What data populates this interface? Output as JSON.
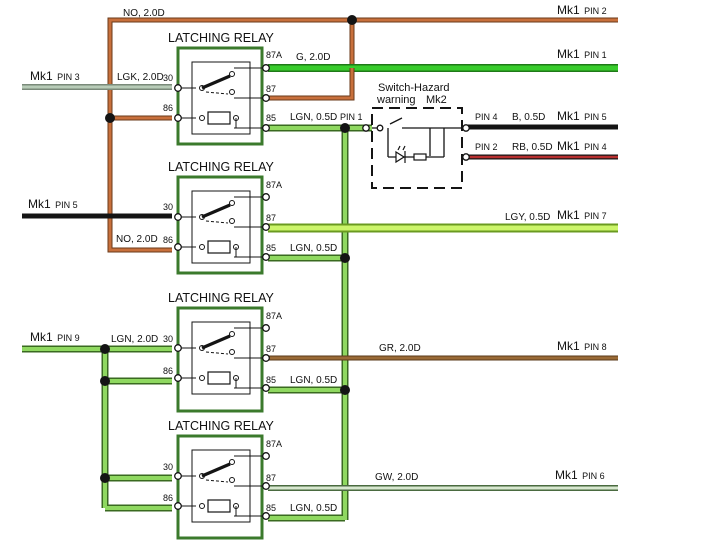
{
  "colors": {
    "orange": "#c8703c",
    "green": "#2fbe25",
    "gray_green": "#9cb4a0",
    "black": "#141414",
    "red": "#b83030",
    "light_green": "#b8f050",
    "green_light": "#8fd860",
    "brown": "#8a5a2e",
    "gray_white": "#c8d8c0",
    "relay_border": "#3b7a2c",
    "wire_edge": "#3c4030"
  },
  "relays": [
    {
      "title": "LATCHING RELAY",
      "pin_30": "30",
      "pin_86": "86",
      "pin_87a": "87A",
      "pin_87": "87",
      "pin_85": "85"
    },
    {
      "title": "LATCHING RELAY",
      "pin_30": "30",
      "pin_86": "86",
      "pin_87a": "87A",
      "pin_87": "87",
      "pin_85": "85"
    },
    {
      "title": "LATCHING RELAY",
      "pin_30": "30",
      "pin_86": "86",
      "pin_87a": "87A",
      "pin_87": "87",
      "pin_85": "85"
    },
    {
      "title": "LATCHING RELAY",
      "pin_30": "30",
      "pin_86": "86",
      "pin_87a": "87A",
      "pin_87": "87",
      "pin_85": "85"
    }
  ],
  "wire_labels": {
    "no_top": "NO, 2.0D",
    "lgk": "LGK, 2.0D",
    "g": "G, 2.0D",
    "lgn_r1": "LGN, 0.5D",
    "no_r2": "NO, 2.0D",
    "lgy": "LGY, 0.5D",
    "lgn_r2": "LGN, 0.5D",
    "lgn_in": "LGN, 2.0D",
    "gr": "GR, 2.0D",
    "lgn_r3": "LGN, 0.5D",
    "gw": "GW, 2.0D",
    "lgn_r4": "LGN, 0.5D",
    "b": "B, 0.5D",
    "rb": "RB, 0.5D"
  },
  "connectors": {
    "pin2_top": {
      "mk": "Mk1",
      "pin": "PIN 2"
    },
    "pin1": {
      "mk": "Mk1",
      "pin": "PIN 1"
    },
    "pin3": {
      "mk": "Mk1",
      "pin": "PIN 3"
    },
    "pin5_right": {
      "mk": "Mk1",
      "pin": "PIN 5"
    },
    "pin4": {
      "mk": "Mk1",
      "pin": "PIN 4"
    },
    "pin5_left": {
      "mk": "Mk1",
      "pin": "PIN 5"
    },
    "pin7": {
      "mk": "Mk1",
      "pin": "PIN 7"
    },
    "pin9": {
      "mk": "Mk1",
      "pin": "PIN 9"
    },
    "pin8": {
      "mk": "Mk1",
      "pin": "PIN 8"
    },
    "pin6": {
      "mk": "Mk1",
      "pin": "PIN 6"
    }
  },
  "switch": {
    "title_line1": "Switch-Hazard",
    "title_line2": "warning",
    "mk": "Mk2",
    "pin1": "PIN 1",
    "pin4": "PIN 4",
    "pin2": "PIN 2"
  }
}
